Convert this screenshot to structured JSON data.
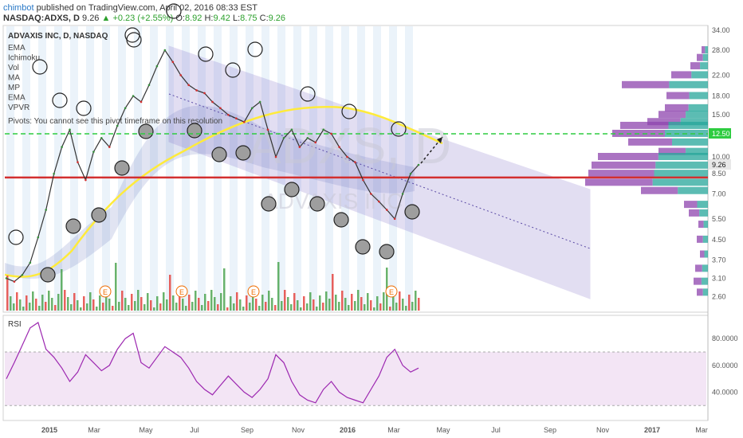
{
  "header": {
    "author": "chimbot",
    "published_text": "published on TradingView.com, April 02, 2016 08:33 EST",
    "symbol": "NASDAQ:ADXS, D",
    "last": "9.26",
    "change": "+0.23 (+2.55%)",
    "o_label": "O:",
    "o_value": "8.92",
    "h_label": "H:",
    "h_value": "9.42",
    "l_label": "L:",
    "l_value": "8.75",
    "c_label": "C:",
    "c_value": "9.26"
  },
  "indicators": {
    "title": "ADVAXIS INC, D, NASDAQ",
    "items": [
      "EMA",
      "Ichimoku",
      "Vol",
      "MA",
      "MP",
      "EMA",
      "VPVR"
    ],
    "pivots_note": "Pivots: You cannot see this pivot timeframe on this resolution"
  },
  "watermark": {
    "big": "ADXS, D",
    "small": "ADVAXIS INC"
  },
  "colors": {
    "accent_up": "#4caf50",
    "down": "#d32f2f",
    "channel": "#9c8fd6",
    "rsi": "#9c27b0",
    "ema": "#ffeb3b"
  },
  "chart_data": [
    {
      "type": "line",
      "title": "ADVAXIS INC, D, NASDAQ",
      "yscale": "log",
      "ylim": [
        2.45,
        35
      ],
      "y_ticks": [
        "34.00",
        "28.00",
        "22.00",
        "18.00",
        "15.00",
        "12.50",
        "10.00",
        "8.50",
        "7.00",
        "5.50",
        "4.50",
        "3.70",
        "3.10",
        "2.60"
      ],
      "x_ticks": [
        "2015",
        "Mar",
        "May",
        "Jul",
        "Sep",
        "Nov",
        "2016",
        "Mar",
        "May",
        "Jul",
        "Sep",
        "Nov",
        "2017",
        "Mar"
      ],
      "price_label": "9.26",
      "level_label": "12.50",
      "levels": [
        {
          "name": "support",
          "value": 8.2
        },
        {
          "name": "resistance",
          "value": 12.5
        }
      ],
      "earnings_label": "E",
      "series": [
        {
          "values": [
            3.1,
            3.0,
            3.2,
            3.6,
            4.6,
            6.0,
            8.5,
            11.0,
            13.0,
            9.5,
            8.0,
            10.5,
            12.0,
            11.0,
            13.5,
            16.0,
            18.0,
            17.0,
            20.0,
            24.0,
            28.0,
            25.0,
            22.0,
            20.0,
            19.0,
            18.5,
            17.0,
            16.0,
            15.0,
            14.5,
            14.0,
            16.0,
            17.0,
            13.0,
            10.0,
            12.0,
            13.0,
            11.0,
            12.0,
            11.5,
            13.0,
            12.5,
            11.0,
            10.0,
            9.5,
            8.0,
            7.0,
            6.5,
            6.0,
            5.5,
            7.0,
            8.5,
            9.26
          ]
        }
      ]
    },
    {
      "type": "line",
      "title": "RSI",
      "ylim": [
        20,
        95
      ],
      "y_ticks": [
        "80.0000",
        "60.0000",
        "40.0000"
      ],
      "band": [
        30,
        70
      ],
      "series": [
        {
          "values": [
            50,
            62,
            75,
            88,
            92,
            72,
            66,
            58,
            48,
            55,
            68,
            62,
            56,
            60,
            72,
            80,
            84,
            62,
            58,
            66,
            74,
            70,
            66,
            58,
            48,
            42,
            38,
            45,
            52,
            46,
            40,
            36,
            42,
            50,
            68,
            62,
            48,
            38,
            34,
            32,
            42,
            48,
            40,
            36,
            34,
            32,
            42,
            52,
            66,
            72,
            60,
            55,
            58
          ]
        }
      ]
    }
  ]
}
